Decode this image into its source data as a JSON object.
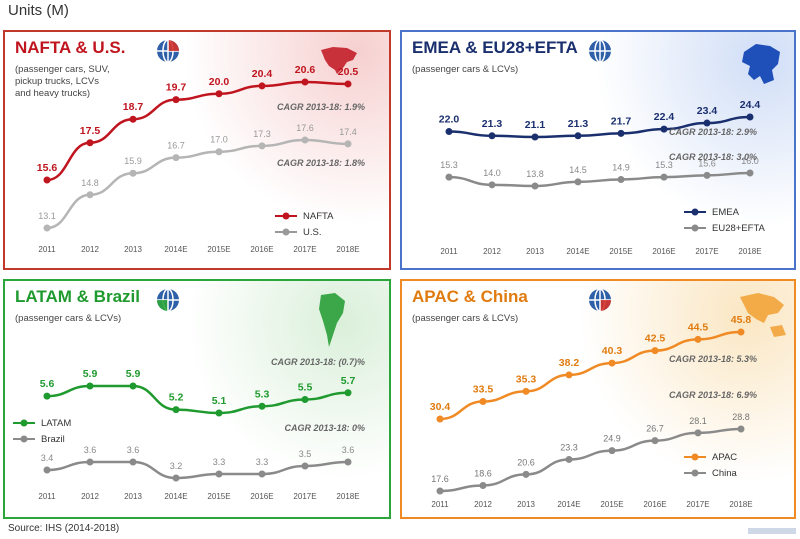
{
  "page": {
    "title": "Units (M)",
    "source": "Source: IHS (2014-2018)"
  },
  "panels": [
    {
      "id": "nafta",
      "title": "NAFTA & U.S.",
      "subtitle": "(passenger cars, SUV,\npickup trucks, LCVs\nand heavy trucks)",
      "border_color": "#c0392b",
      "title_color": "#c0141e",
      "legend": [
        "NAFTA",
        "U.S."
      ],
      "cagr": [
        "CAGR 2013-18: 1.9%",
        "CAGR 2013-18: 1.8%"
      ]
    },
    {
      "id": "emea",
      "title": "EMEA & EU28+EFTA",
      "subtitle": "(passenger cars & LCVs)",
      "border_color": "#4a74c9",
      "title_color": "#1a2f6e",
      "legend": [
        "EMEA",
        "EU28+EFTA"
      ],
      "cagr": [
        "CAGR 2013-18: 2.9%",
        "CAGR 2013-18: 3.0%"
      ]
    },
    {
      "id": "latam",
      "title": "LATAM & Brazil",
      "subtitle": "(passenger cars & LCVs)",
      "border_color": "#2ca53a",
      "title_color": "#1f9a2e",
      "legend": [
        "LATAM",
        "Brazil"
      ],
      "cagr": [
        "CAGR 2013-18: (0.7)%",
        "CAGR 2013-18: 0%"
      ]
    },
    {
      "id": "apac",
      "title": "APAC & China",
      "subtitle": "(passenger cars & LCVs)",
      "border_color": "#f08a24",
      "title_color": "#e07b10",
      "legend": [
        "APAC",
        "China"
      ],
      "cagr": [
        "CAGR 2013-18: 5.3%",
        "CAGR 2013-18: 6.9%"
      ]
    }
  ],
  "chart_data": [
    {
      "type": "line",
      "title": "NAFTA & U.S.",
      "categories": [
        "2011",
        "2012",
        "2013",
        "2014E",
        "2015E",
        "2016E",
        "2017E",
        "2018E"
      ],
      "series": [
        {
          "name": "NAFTA",
          "color": "#c0141e",
          "values": [
            15.6,
            17.5,
            18.7,
            19.7,
            20.0,
            20.4,
            20.6,
            20.5
          ]
        },
        {
          "name": "U.S.",
          "color": "#b5b5b5",
          "values": [
            13.1,
            14.8,
            15.9,
            16.7,
            17.0,
            17.3,
            17.6,
            17.4
          ]
        }
      ],
      "annotations": [
        "CAGR 2013-18: 1.9%",
        "CAGR 2013-18: 1.8%"
      ],
      "legend_position": "bottom-right",
      "grid": false
    },
    {
      "type": "line",
      "title": "EMEA & EU28+EFTA",
      "categories": [
        "2011",
        "2012",
        "2013",
        "2014E",
        "2015E",
        "2016E",
        "2017E",
        "2018E"
      ],
      "series": [
        {
          "name": "EMEA",
          "color": "#1a2f6e",
          "values": [
            22.0,
            21.3,
            21.1,
            21.3,
            21.7,
            22.4,
            23.4,
            24.4
          ]
        },
        {
          "name": "EU28+EFTA",
          "color": "#8a8a8a",
          "values": [
            15.3,
            14.0,
            13.8,
            14.5,
            14.9,
            15.3,
            15.6,
            16.0
          ]
        }
      ],
      "annotations": [
        "CAGR 2013-18: 2.9%",
        "CAGR 2013-18: 3.0%"
      ],
      "legend_position": "bottom-right",
      "grid": false
    },
    {
      "type": "line",
      "title": "LATAM & Brazil",
      "categories": [
        "2011",
        "2012",
        "2013",
        "2014E",
        "2015E",
        "2016E",
        "2017E",
        "2018E"
      ],
      "series": [
        {
          "name": "LATAM",
          "color": "#1f9a2e",
          "values": [
            5.6,
            5.9,
            5.9,
            5.2,
            5.1,
            5.3,
            5.5,
            5.7
          ]
        },
        {
          "name": "Brazil",
          "color": "#8a8a8a",
          "values": [
            3.4,
            3.6,
            3.6,
            3.2,
            3.3,
            3.3,
            3.5,
            3.6
          ]
        }
      ],
      "annotations": [
        "CAGR 2013-18: (0.7)%",
        "CAGR 2013-18: 0%"
      ],
      "legend_position": "left",
      "grid": false
    },
    {
      "type": "line",
      "title": "APAC & China",
      "categories": [
        "2011",
        "2012",
        "2013",
        "2014E",
        "2015E",
        "2016E",
        "2017E",
        "2018E"
      ],
      "series": [
        {
          "name": "APAC",
          "color": "#f08a24",
          "values": [
            30.4,
            33.5,
            35.3,
            38.2,
            40.3,
            42.5,
            44.5,
            45.8
          ]
        },
        {
          "name": "China",
          "color": "#8a8a8a",
          "values": [
            17.6,
            18.6,
            20.6,
            23.3,
            24.9,
            26.7,
            28.1,
            28.8
          ]
        }
      ],
      "annotations": [
        "CAGR 2013-18: 5.3%",
        "CAGR 2013-18: 6.9%"
      ],
      "legend_position": "bottom-right",
      "grid": false
    }
  ]
}
